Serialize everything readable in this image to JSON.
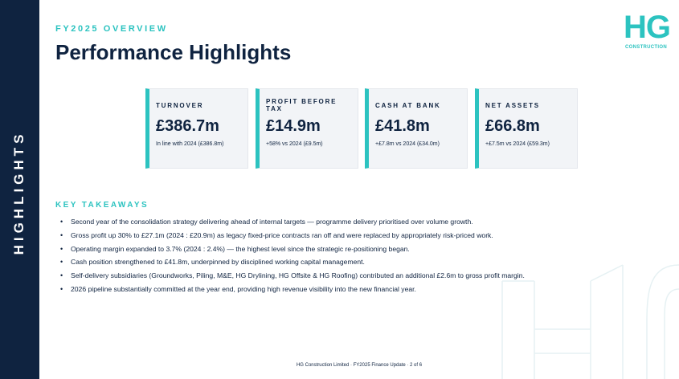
{
  "sidebar": {
    "label": "HIGHLIGHTS"
  },
  "header": {
    "eyebrow": "FY2025 OVERVIEW",
    "title": "Performance Highlights"
  },
  "logo": {
    "mark": "HG",
    "subtitle": "CONSTRUCTION"
  },
  "metrics": [
    {
      "label": "TURNOVER",
      "value": "£386.7m",
      "note": "In line with 2024 (£386.8m)"
    },
    {
      "label": "PROFIT BEFORE TAX",
      "value": "£14.9m",
      "note": "+58% vs 2024 (£9.5m)"
    },
    {
      "label": "CASH AT BANK",
      "value": "£41.8m",
      "note": "+£7.8m vs 2024 (£34.0m)"
    },
    {
      "label": "NET ASSETS",
      "value": "£66.8m",
      "note": "+£7.5m vs 2024 (£59.3m)"
    }
  ],
  "takeaways": {
    "title": "KEY TAKEAWAYS",
    "items": [
      "Second year of the consolidation strategy delivering ahead of internal targets — programme delivery prioritised over volume growth.",
      "Gross profit up 30% to £27.1m (2024 : £20.9m) as legacy fixed-price contracts ran off and were replaced by appropriately risk-priced work.",
      "Operating margin expanded to 3.7% (2024 : 2.4%) — the highest level since the strategic re-positioning began.",
      "Cash position strengthened to £41.8m, underpinned by disciplined working capital management.",
      "Self-delivery subsidiaries (Groundworks, Piling, M&E, HG Drylining, HG Offsite & HG Roofing) contributed an additional £2.6m to gross profit margin.",
      "2026 pipeline substantially committed at the year end, providing high revenue visibility into the new financial year."
    ]
  },
  "footer": {
    "text": "HG Construction Limited · FY2025 Finance Update · 2 of 6"
  },
  "colors": {
    "navy": "#0f2340",
    "teal": "#2cc3c0",
    "card_bg": "#f2f4f7"
  }
}
